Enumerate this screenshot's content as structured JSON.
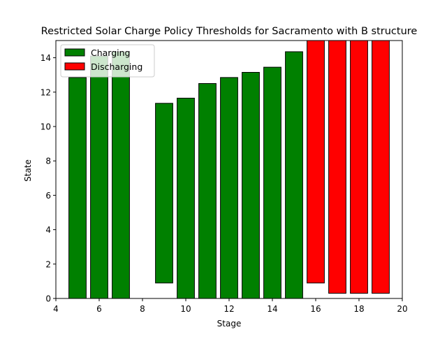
{
  "chart_data": {
    "type": "bar",
    "title": "Restricted Solar Charge Policy Thresholds for Sacramento with B structure",
    "xlabel": "Stage",
    "ylabel": "State",
    "xlim": [
      4,
      20
    ],
    "ylim": [
      0,
      15
    ],
    "xticks": [
      4,
      6,
      8,
      10,
      12,
      14,
      16,
      18,
      20
    ],
    "yticks": [
      0,
      2,
      4,
      6,
      8,
      10,
      12,
      14
    ],
    "grid": false,
    "legend_placement": "top-left",
    "bar_width": 0.8,
    "series": [
      {
        "name": "Charging",
        "color": "#008000",
        "bars": [
          {
            "x": 5,
            "bottom": 0,
            "top": 12.85
          },
          {
            "x": 6,
            "bottom": 0,
            "top": 14.1
          },
          {
            "x": 7,
            "bottom": 0,
            "top": 14.35
          },
          {
            "x": 8,
            "bottom": 0,
            "top": 0
          },
          {
            "x": 9,
            "bottom": 0.9,
            "top": 11.35
          },
          {
            "x": 10,
            "bottom": 0,
            "top": 11.65
          },
          {
            "x": 11,
            "bottom": 0,
            "top": 12.5
          },
          {
            "x": 12,
            "bottom": 0,
            "top": 12.85
          },
          {
            "x": 13,
            "bottom": 0,
            "top": 13.15
          },
          {
            "x": 14,
            "bottom": 0,
            "top": 13.45
          },
          {
            "x": 15,
            "bottom": 0,
            "top": 14.35
          }
        ]
      },
      {
        "name": "Discharging",
        "color": "#ff0000",
        "bars": [
          {
            "x": 16,
            "bottom": 0.9,
            "top": 15.0
          },
          {
            "x": 17,
            "bottom": 0.3,
            "top": 15.0
          },
          {
            "x": 18,
            "bottom": 0.3,
            "top": 15.0
          },
          {
            "x": 19,
            "bottom": 0.3,
            "top": 15.0
          }
        ]
      }
    ]
  }
}
